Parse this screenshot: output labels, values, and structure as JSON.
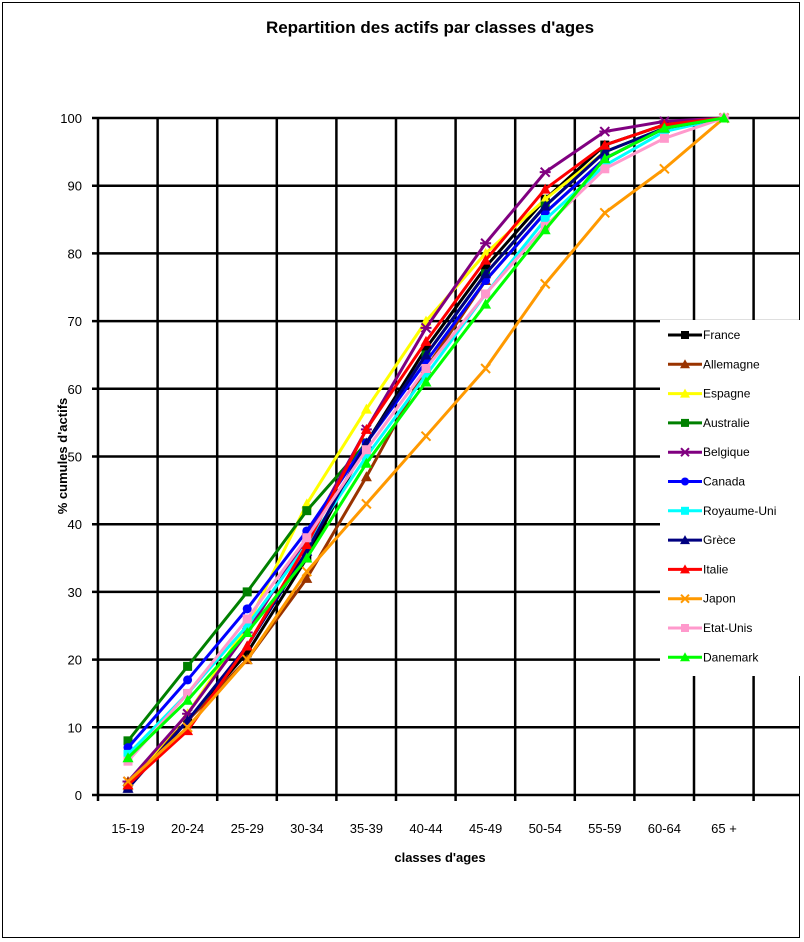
{
  "chart_data": {
    "type": "line",
    "title": "Repartition des actifs par classes d'ages",
    "xlabel": "classes d'ages",
    "ylabel": "% cumules d'actifs",
    "categories": [
      "15-19",
      "20-24",
      "25-29",
      "30-34",
      "35-39",
      "40-44",
      "45-49",
      "50-54",
      "55-59",
      "60-64",
      "65 +"
    ],
    "ylim": [
      0,
      100
    ],
    "yticks": [
      "0",
      "10",
      "20",
      "30",
      "40",
      "50",
      "60",
      "70",
      "80",
      "90",
      "100"
    ],
    "grid": true,
    "legend_position": "right",
    "series": [
      {
        "name": "France",
        "color": "#000000",
        "marker": "square",
        "values": [
          1,
          11,
          21,
          35,
          52,
          66,
          78,
          88,
          96,
          99,
          100
        ]
      },
      {
        "name": "Allemagne",
        "color": "#993300",
        "marker": "triangle",
        "values": [
          2,
          11,
          20,
          32,
          47,
          63,
          76,
          86,
          94,
          98.5,
          100
        ]
      },
      {
        "name": "Espagne",
        "color": "#ffff00",
        "marker": "triangle",
        "values": [
          1.5,
          12,
          25,
          43,
          57,
          70,
          80,
          88,
          95,
          98.5,
          100
        ]
      },
      {
        "name": "Australie",
        "color": "#008000",
        "marker": "square",
        "values": [
          8,
          19,
          30,
          42,
          52,
          65,
          77,
          87,
          95,
          98.5,
          100
        ]
      },
      {
        "name": "Belgique",
        "color": "#800080",
        "marker": "cross",
        "values": [
          2,
          12,
          24,
          38,
          54,
          69,
          81.5,
          92,
          98,
          99.5,
          100
        ]
      },
      {
        "name": "Canada",
        "color": "#0000ff",
        "marker": "circle",
        "values": [
          7,
          17,
          27.5,
          39,
          52,
          64,
          76,
          86,
          94,
          98.5,
          100
        ]
      },
      {
        "name": "Royaume-Uni",
        "color": "#00ffff",
        "marker": "square",
        "values": [
          6,
          15,
          25,
          37,
          50,
          62,
          74,
          85,
          93,
          98,
          100
        ]
      },
      {
        "name": "Grèce",
        "color": "#000080",
        "marker": "triangle",
        "values": [
          1,
          11,
          22,
          36,
          52,
          65,
          77,
          87,
          95,
          98.5,
          100
        ]
      },
      {
        "name": "Italie",
        "color": "#ff0000",
        "marker": "triangle",
        "values": [
          1.5,
          9.5,
          22,
          37,
          54,
          67,
          79,
          89.5,
          96,
          99,
          100
        ]
      },
      {
        "name": "Japon",
        "color": "#ff9900",
        "marker": "x",
        "values": [
          2,
          10,
          20,
          33,
          43,
          53,
          63,
          75.5,
          86,
          92.5,
          100
        ]
      },
      {
        "name": "Etat-Unis",
        "color": "#ff99cc",
        "marker": "square",
        "values": [
          5,
          15,
          26,
          38,
          51,
          63,
          74,
          84,
          92.5,
          97,
          100
        ]
      },
      {
        "name": "Danemark",
        "color": "#00ff00",
        "marker": "triangle",
        "values": [
          5.5,
          14,
          24,
          35,
          49,
          61,
          72.5,
          83.5,
          94,
          98.5,
          100
        ]
      }
    ]
  }
}
